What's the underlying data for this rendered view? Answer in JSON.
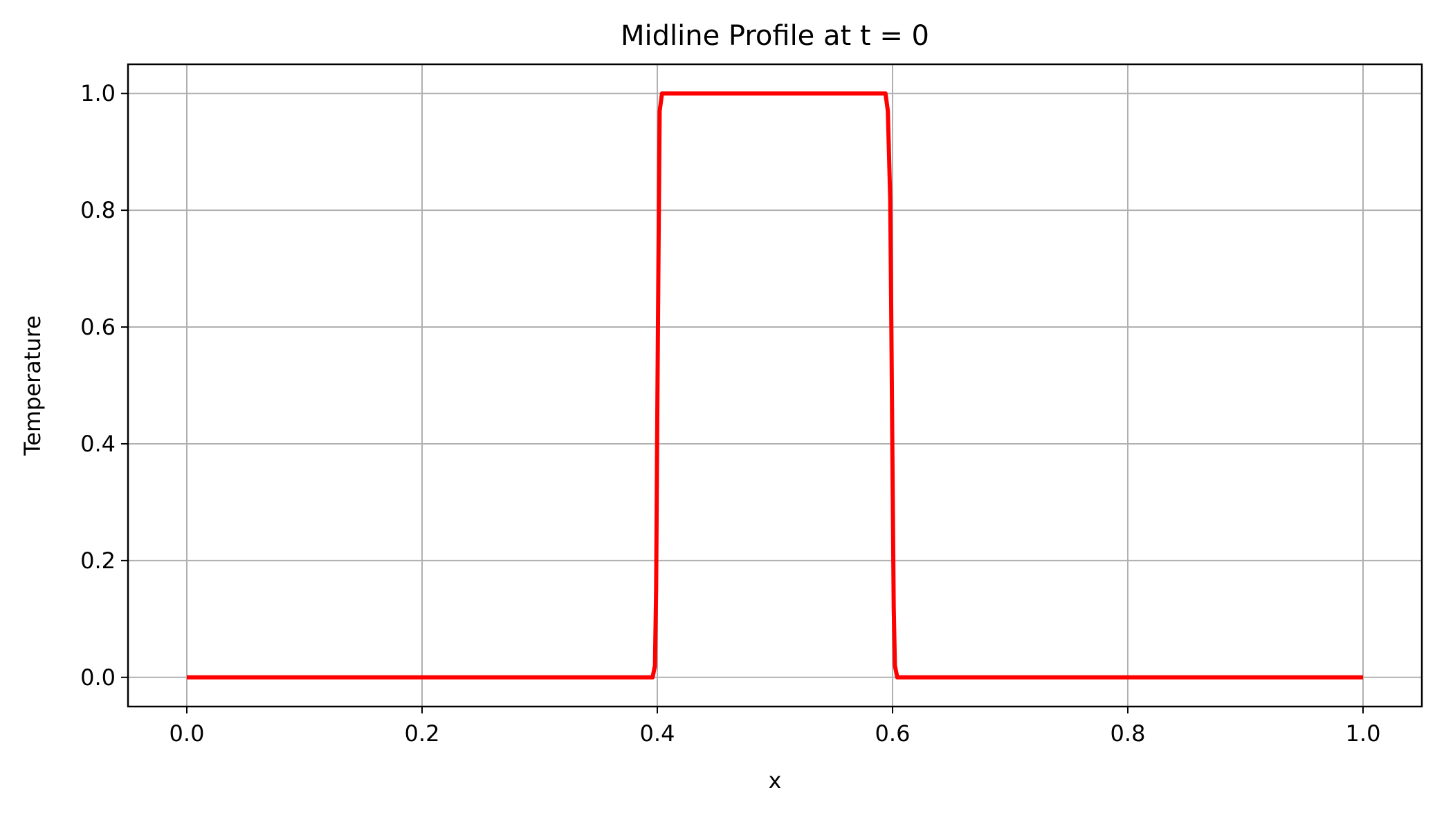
{
  "chart_data": {
    "type": "line",
    "title": "Midline Profile at t = 0",
    "xlabel": "x",
    "ylabel": "Temperature",
    "xlim": [
      -0.05,
      1.05
    ],
    "ylim": [
      -0.05,
      1.05
    ],
    "xticks": [
      0.0,
      0.2,
      0.4,
      0.6,
      0.8,
      1.0
    ],
    "xtick_labels": [
      "0.0",
      "0.2",
      "0.4",
      "0.6",
      "0.8",
      "1.0"
    ],
    "yticks": [
      0.0,
      0.2,
      0.4,
      0.6,
      0.8,
      1.0
    ],
    "ytick_labels": [
      "0.0",
      "0.2",
      "0.4",
      "0.6",
      "0.8",
      "1.0"
    ],
    "grid": true,
    "series": [
      {
        "color": "#ff0000",
        "x": [
          0.0,
          0.396,
          0.398,
          0.399,
          0.4,
          0.401,
          0.402,
          0.404,
          0.406,
          0.594,
          0.596,
          0.598,
          0.599,
          0.6,
          0.601,
          0.602,
          0.604,
          1.0
        ],
        "y": [
          0.0,
          0.0,
          0.02,
          0.15,
          0.45,
          0.72,
          0.97,
          1.0,
          1.0,
          1.0,
          0.97,
          0.82,
          0.6,
          0.35,
          0.12,
          0.02,
          0.0,
          0.0
        ]
      }
    ]
  }
}
